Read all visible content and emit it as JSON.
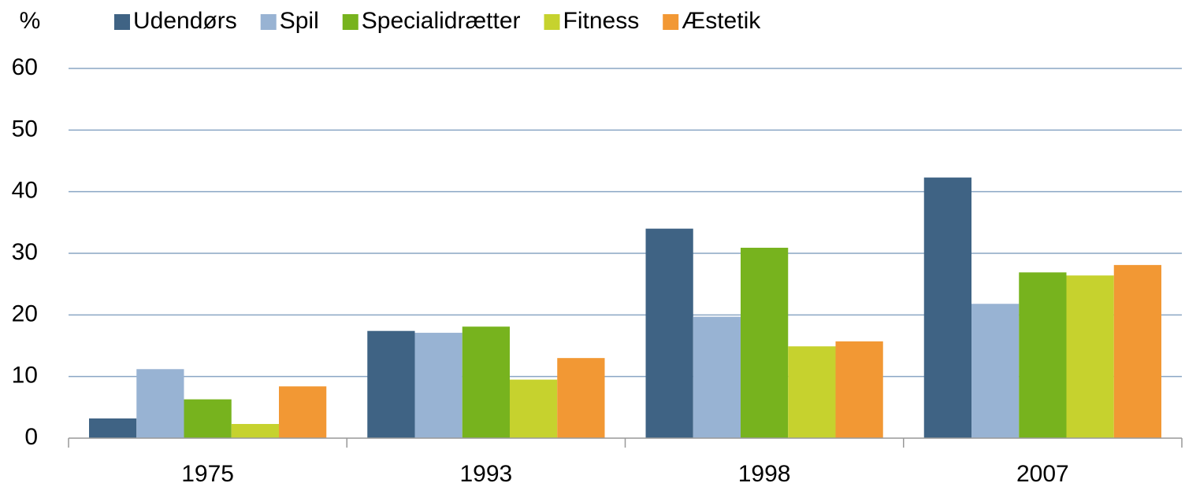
{
  "chart_data": {
    "type": "bar",
    "y_label": "%",
    "categories": [
      "1975",
      "1993",
      "1998",
      "2007"
    ],
    "series": [
      {
        "name": "Udendørs",
        "color": "#3f6384",
        "values": [
          3.2,
          17.4,
          34.0,
          42.3
        ]
      },
      {
        "name": "Spil",
        "color": "#98b3d3",
        "values": [
          11.2,
          17.1,
          19.7,
          21.8
        ]
      },
      {
        "name": "Specialidrætter",
        "color": "#77b31e",
        "values": [
          6.3,
          18.1,
          30.9,
          26.9
        ]
      },
      {
        "name": "Fitness",
        "color": "#c6d22e",
        "values": [
          2.3,
          9.5,
          14.9,
          26.4
        ]
      },
      {
        "name": "Æstetik",
        "color": "#f29834",
        "values": [
          8.4,
          13.0,
          15.7,
          28.1
        ]
      }
    ],
    "ylim": [
      0,
      60
    ],
    "yticks": [
      0,
      10,
      20,
      30,
      40,
      50,
      60
    ],
    "grid": true,
    "legend": "top"
  }
}
